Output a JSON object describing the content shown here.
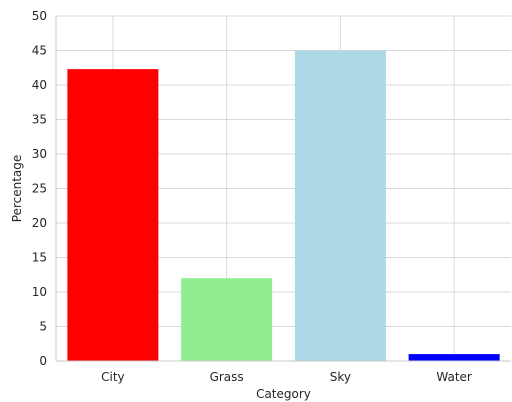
{
  "chart_data": {
    "type": "bar",
    "title": "",
    "xlabel": "Category",
    "ylabel": "Percentage",
    "categories": [
      "City",
      "Grass",
      "Sky",
      "Water"
    ],
    "values": [
      42.3,
      12.0,
      45.0,
      1.0
    ],
    "colors": [
      "#ff0000",
      "#90ee90",
      "#add8e6",
      "#0000ff"
    ],
    "ylim": [
      0,
      50
    ],
    "yticks": [
      "0",
      "5",
      "10",
      "15",
      "20",
      "25",
      "30",
      "35",
      "40",
      "45",
      "50"
    ],
    "grid": true,
    "legend": "none"
  }
}
